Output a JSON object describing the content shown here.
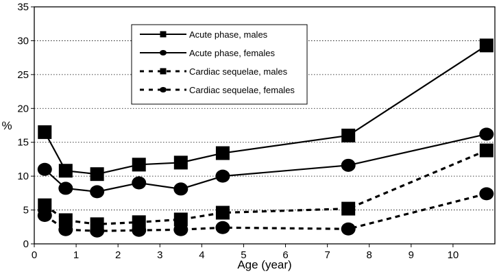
{
  "chart_data": {
    "type": "line",
    "title": "",
    "xlabel": "Age (year)",
    "ylabel": "%",
    "xlim": [
      0,
      11
    ],
    "ylim": [
      0,
      35
    ],
    "xticks": [
      0,
      1,
      2,
      3,
      4,
      5,
      6,
      7,
      8,
      9,
      10
    ],
    "yticks": [
      0,
      5,
      10,
      15,
      20,
      25,
      30,
      35
    ],
    "grid": "horizontal dotted",
    "legend_position": "top-center",
    "x": [
      0.25,
      0.75,
      1.5,
      2.5,
      3.5,
      4.5,
      7.5,
      10.8
    ],
    "series": [
      {
        "name": "Acute phase, males",
        "marker": "square",
        "line": "solid",
        "values": [
          16.5,
          10.8,
          10.3,
          11.7,
          12.0,
          13.4,
          16.0,
          29.3
        ]
      },
      {
        "name": "Acute phase, females",
        "marker": "circle",
        "line": "solid",
        "values": [
          11.0,
          8.2,
          7.7,
          9.0,
          8.1,
          10.0,
          11.6,
          16.2
        ]
      },
      {
        "name": "Cardiac sequelae, males",
        "marker": "square",
        "line": "dashed",
        "values": [
          5.7,
          3.5,
          2.9,
          3.2,
          3.6,
          4.6,
          5.2,
          13.8
        ]
      },
      {
        "name": "Cardiac sequelae, females",
        "marker": "circle",
        "line": "dashed",
        "values": [
          4.2,
          2.1,
          1.9,
          2.0,
          2.1,
          2.4,
          2.2,
          7.4
        ]
      }
    ]
  }
}
